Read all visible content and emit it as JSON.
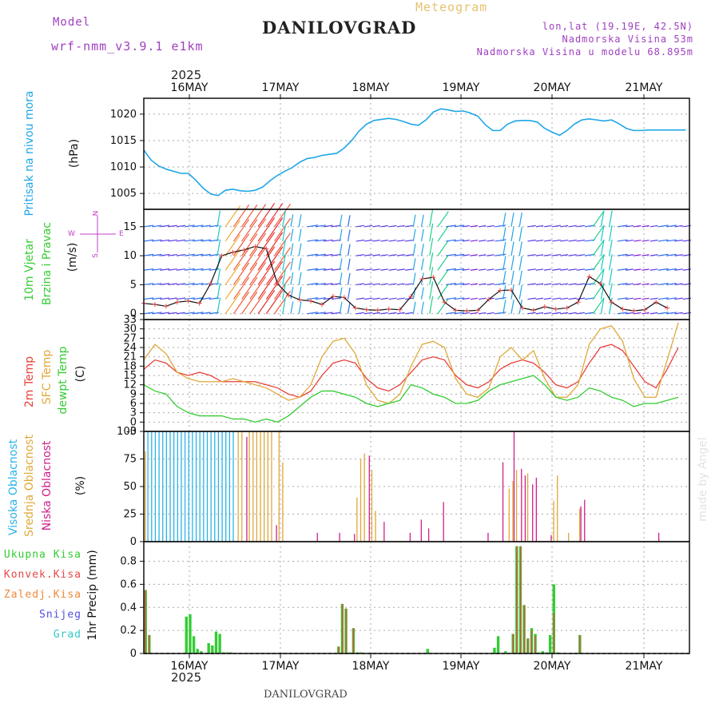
{
  "header": {
    "model_label": "Model",
    "model_name": "wrf-nmm_v3.9.1 e1km",
    "title": "DANILOVGRAD",
    "subtitle": "Meteogram",
    "lonlat": "lon,lat (19.19E, 42.5N)",
    "elevation": "Nadmorska Visina 53m",
    "model_elevation": "Nadmorska Visina u modelu 68.895m",
    "year_top": "2025",
    "year_bottom": "2025",
    "footer_station": "DANILOVGRAD",
    "watermark": "made by Angel"
  },
  "colors": {
    "pressure": "#1fa6e8",
    "temp2m": "#e8403a",
    "sfc": "#e0a83a",
    "dewpt": "#33cc33",
    "precip_total": "#33cc33",
    "precip_conv": "#e84848",
    "precip_frozen": "#f08838",
    "snow": "#5050e0",
    "hail": "#33c8c8",
    "cloud_high": "#2ab3e8",
    "cloud_mid": "#e0a83a",
    "cloud_low": "#d0208a",
    "wind_label": "#33cc33",
    "wind_dir_label": "#c040c0",
    "title": "#222222",
    "purple": "#a040c0"
  },
  "panel_labels": {
    "pressure": {
      "name": "Pritisak na nivou mora",
      "unit": "(hPa)"
    },
    "wind": {
      "name1": "10m Vjetar",
      "name2": "Brzina i Pravac",
      "unit": "(m/s)",
      "compass_n": "N",
      "compass_w": "W",
      "compass_e": "E",
      "compass_s": "S"
    },
    "temp": {
      "name1": "2m Temp",
      "name2": "SFC Temp",
      "name3": "dewpt Temp",
      "unit": "(C)"
    },
    "cloud": {
      "name1": "Visoka Oblacnost",
      "name2": "Srednja Oblacnost",
      "name3": "Niska Oblacnost",
      "unit": "(%)"
    },
    "precip": {
      "legend": [
        "Ukupna Kisa",
        "Konvek.Kisa",
        "Zaledj.Kisa",
        "Snijeg",
        "Grad"
      ],
      "unit": "1hr Precip (mm)"
    }
  },
  "chart_data": [
    {
      "type": "line",
      "title": "",
      "ylabel": "Pritisak na nivou mora (hPa)",
      "x_days": [
        "16MAY",
        "17MAY",
        "18MAY",
        "19MAY",
        "20MAY",
        "21MAY"
      ],
      "ylim": [
        1002,
        1023
      ],
      "yticks": [
        1005,
        1010,
        1015,
        1020
      ],
      "grid": true,
      "series": [
        {
          "name": "Pritisak na nivou mora",
          "x": [
            0,
            2,
            4,
            6,
            8,
            10,
            12,
            14,
            16,
            18,
            20,
            22,
            24,
            26,
            28,
            30,
            32,
            34,
            36,
            38,
            40,
            42,
            44,
            46,
            48,
            50,
            52,
            54,
            56,
            58,
            60,
            62,
            64,
            66,
            68,
            70,
            72,
            74,
            76,
            78,
            80,
            82,
            84,
            86,
            88,
            90,
            92,
            94,
            96,
            98,
            100,
            102,
            104,
            106,
            108,
            110,
            112,
            114,
            116,
            118,
            120,
            122,
            124,
            126,
            128,
            130,
            132,
            134,
            136,
            138,
            140,
            142,
            144,
            146
          ],
          "values": [
            1013.2,
            1011.3,
            1010.2,
            1009.6,
            1009.2,
            1008.8,
            1008.8,
            1007.5,
            1006.0,
            1004.9,
            1004.6,
            1005.6,
            1005.8,
            1005.5,
            1005.4,
            1005.6,
            1006.2,
            1007.4,
            1008.4,
            1009.2,
            1009.9,
            1010.9,
            1011.6,
            1011.8,
            1012.2,
            1012.4,
            1012.6,
            1013.6,
            1015.0,
            1016.8,
            1018.1,
            1018.8,
            1019.0,
            1019.2,
            1019.0,
            1018.6,
            1018.1,
            1017.9,
            1018.9,
            1020.4,
            1021.0,
            1020.8,
            1020.5,
            1020.6,
            1020.2,
            1019.6,
            1018.0,
            1016.9,
            1016.9,
            1018.1,
            1018.7,
            1018.8,
            1018.8,
            1018.5,
            1017.3,
            1016.6,
            1016.0,
            1016.9,
            1018.1,
            1018.9,
            1019.1,
            1018.9,
            1018.7,
            1018.9,
            1018.2,
            1017.3,
            1016.9,
            1016.9,
            1017.0,
            1017.0,
            1017.0,
            1017.0,
            1017.0,
            1017.0
          ]
        }
      ]
    },
    {
      "type": "line",
      "title": "",
      "ylabel": "10m Vjetar Brzina i Pravac (m/s)",
      "ylim": [
        -1,
        18
      ],
      "yticks": [
        0,
        5,
        10,
        15
      ],
      "grid": true,
      "series": [
        {
          "name": "wind speed",
          "x": [
            0,
            3,
            6,
            9,
            12,
            15,
            18,
            21,
            24,
            27,
            30,
            33,
            36,
            39,
            42,
            45,
            48,
            51,
            54,
            57,
            60,
            63,
            66,
            69,
            72,
            75,
            78,
            81,
            84,
            87,
            90,
            93,
            96,
            99,
            102,
            105,
            108,
            111,
            114,
            117,
            120,
            123,
            126,
            129,
            132,
            135,
            138,
            141
          ],
          "values": [
            1.8,
            1.6,
            1.3,
            2.0,
            2.2,
            1.8,
            5.2,
            10.0,
            10.6,
            11.0,
            11.6,
            11.2,
            5.2,
            3.2,
            2.4,
            2.2,
            1.6,
            3.0,
            2.8,
            1.0,
            0.7,
            0.6,
            0.8,
            0.7,
            3.0,
            6.0,
            6.3,
            2.0,
            0.6,
            0.5,
            0.6,
            2.5,
            4.0,
            4.1,
            1.0,
            0.6,
            1.2,
            0.8,
            1.0,
            2.0,
            6.4,
            5.2,
            2.0,
            0.8,
            0.5,
            0.7,
            2.0,
            1.0
          ]
        }
      ]
    },
    {
      "type": "line",
      "title": "",
      "ylabel": "Temp (C)",
      "ylim": [
        -3,
        33
      ],
      "yticks": [
        -3,
        0,
        3,
        6,
        9,
        12,
        15,
        18,
        21,
        24,
        27,
        30,
        33
      ],
      "grid": true,
      "series": [
        {
          "name": "2m Temp",
          "x": [
            0,
            3,
            6,
            9,
            12,
            15,
            18,
            21,
            24,
            27,
            30,
            33,
            36,
            39,
            42,
            45,
            48,
            51,
            54,
            57,
            60,
            63,
            66,
            69,
            72,
            75,
            78,
            81,
            84,
            87,
            90,
            93,
            96,
            99,
            102,
            105,
            108,
            111,
            114,
            117,
            120,
            123,
            126,
            129,
            132,
            135,
            138,
            141,
            144
          ],
          "values": [
            17,
            20,
            19,
            16,
            15,
            16,
            15,
            13,
            13,
            13,
            13,
            12,
            11,
            9,
            8,
            10,
            15,
            19,
            20,
            19,
            14,
            11,
            10,
            12,
            16,
            20,
            21,
            20,
            15,
            12,
            11,
            13,
            17,
            19,
            20,
            19,
            16,
            12,
            11,
            13,
            19,
            24,
            25,
            23,
            18,
            13,
            11,
            17,
            24
          ]
        },
        {
          "name": "SFC Temp",
          "x": [
            0,
            3,
            6,
            9,
            12,
            15,
            18,
            21,
            24,
            27,
            30,
            33,
            36,
            39,
            42,
            45,
            48,
            51,
            54,
            57,
            60,
            63,
            66,
            69,
            72,
            75,
            78,
            81,
            84,
            87,
            90,
            93,
            96,
            99,
            102,
            105,
            108,
            111,
            114,
            117,
            120,
            123,
            126,
            129,
            132,
            135,
            138,
            141,
            144
          ],
          "values": [
            20,
            25,
            22,
            16,
            14,
            13,
            13,
            13,
            14,
            13,
            12,
            11,
            9,
            7,
            8,
            12,
            21,
            26,
            27,
            22,
            12,
            7,
            6,
            9,
            18,
            25,
            26,
            24,
            14,
            9,
            8,
            11,
            21,
            24,
            20,
            23,
            14,
            8,
            8,
            12,
            25,
            30,
            31,
            26,
            14,
            8,
            8,
            20,
            32
          ]
        },
        {
          "name": "dewpt Temp",
          "x": [
            0,
            3,
            6,
            9,
            12,
            15,
            18,
            21,
            24,
            27,
            30,
            33,
            36,
            39,
            42,
            45,
            48,
            51,
            54,
            57,
            60,
            63,
            66,
            69,
            72,
            75,
            78,
            81,
            84,
            87,
            90,
            93,
            96,
            99,
            102,
            105,
            108,
            111,
            114,
            117,
            120,
            123,
            126,
            129,
            132,
            135,
            138,
            141,
            144
          ],
          "values": [
            12,
            10,
            9,
            5,
            3,
            2,
            2,
            2,
            1,
            1,
            0,
            1,
            0,
            2,
            5,
            8,
            10,
            10,
            9,
            8,
            6,
            5,
            6,
            7,
            12,
            11,
            9,
            8,
            6,
            6,
            7,
            10,
            12,
            13,
            14,
            15,
            12,
            8,
            7,
            8,
            11,
            10,
            8,
            7,
            5,
            6,
            6,
            7,
            8
          ]
        }
      ]
    },
    {
      "type": "bar",
      "title": "",
      "ylabel": "Oblacnost (%)",
      "ylim": [
        0,
        100
      ],
      "yticks": [
        0,
        25,
        50,
        75,
        100
      ],
      "grid": true,
      "series": [
        {
          "name": "Visoka Oblacnost",
          "x": [
            1,
            2,
            3,
            4,
            5,
            6,
            7,
            8,
            9,
            10,
            11,
            12,
            13,
            14,
            15,
            16,
            17,
            18,
            19,
            20,
            21,
            22,
            23,
            24
          ],
          "values": [
            100,
            100,
            100,
            100,
            100,
            100,
            100,
            100,
            100,
            100,
            100,
            100,
            100,
            100,
            100,
            100,
            100,
            100,
            100,
            100,
            100,
            100,
            100,
            100
          ]
        },
        {
          "name": "Srednja Oblacnost",
          "x": [
            0,
            25,
            26,
            28,
            29,
            30,
            31,
            32,
            33,
            34,
            36,
            37,
            57,
            58,
            59,
            61,
            62,
            98,
            99,
            100,
            103,
            110,
            111,
            114,
            117
          ],
          "values": [
            82,
            100,
            100,
            100,
            100,
            100,
            100,
            100,
            100,
            100,
            100,
            72,
            40,
            75,
            80,
            65,
            28,
            48,
            55,
            65,
            62,
            37,
            60,
            8,
            30
          ]
        },
        {
          "name": "Niska Oblacnost",
          "x": [
            27,
            35,
            46,
            52,
            56,
            60,
            64,
            71,
            74,
            76,
            80,
            92,
            96,
            99,
            101,
            102,
            104,
            105,
            109,
            117,
            118,
            138
          ],
          "values": [
            95,
            15,
            8,
            8,
            7,
            78,
            18,
            8,
            20,
            12,
            36,
            8,
            72,
            100,
            66,
            60,
            52,
            58,
            6,
            32,
            38,
            8
          ]
        }
      ]
    },
    {
      "type": "bar",
      "title": "",
      "ylabel": "1hr Precip (mm)",
      "ylim": [
        0,
        0.97
      ],
      "yticks": [
        0,
        0.2,
        0.4,
        0.6,
        0.8
      ],
      "grid": true,
      "series": [
        {
          "name": "Ukupna Kisa",
          "x": [
            0,
            1,
            11,
            12,
            13,
            14,
            15,
            17,
            18,
            19,
            20,
            21,
            22,
            23,
            52,
            53,
            54,
            55,
            56,
            57,
            58,
            76,
            94,
            95,
            97,
            99,
            100,
            101,
            102,
            103,
            104,
            105,
            106,
            107,
            108,
            109,
            110,
            111,
            117
          ],
          "values": [
            0.55,
            0.16,
            0.32,
            0.34,
            0.15,
            0.04,
            0.02,
            0.09,
            0.07,
            0.19,
            0.17,
            0.01,
            0.01,
            0.01,
            0.06,
            0.43,
            0.39,
            0.01,
            0.22,
            0.01,
            0.01,
            0.04,
            0.05,
            0.15,
            0.02,
            0.17,
            0.93,
            0.93,
            0.42,
            0.13,
            0.22,
            0.17,
            0.01,
            0.02,
            0.01,
            0.16,
            0.6,
            0.01,
            0.16
          ]
        },
        {
          "name": "Konvek.Kisa",
          "x": [
            0,
            1,
            52,
            53,
            54,
            56,
            99,
            100,
            101,
            102,
            103,
            104,
            105,
            110,
            117
          ],
          "values": [
            0.55,
            0.16,
            0.06,
            0.43,
            0.39,
            0.22,
            0.17,
            0.93,
            0.93,
            0.42,
            0.13,
            0.2,
            0.15,
            0.35,
            0.16
          ]
        }
      ]
    }
  ]
}
